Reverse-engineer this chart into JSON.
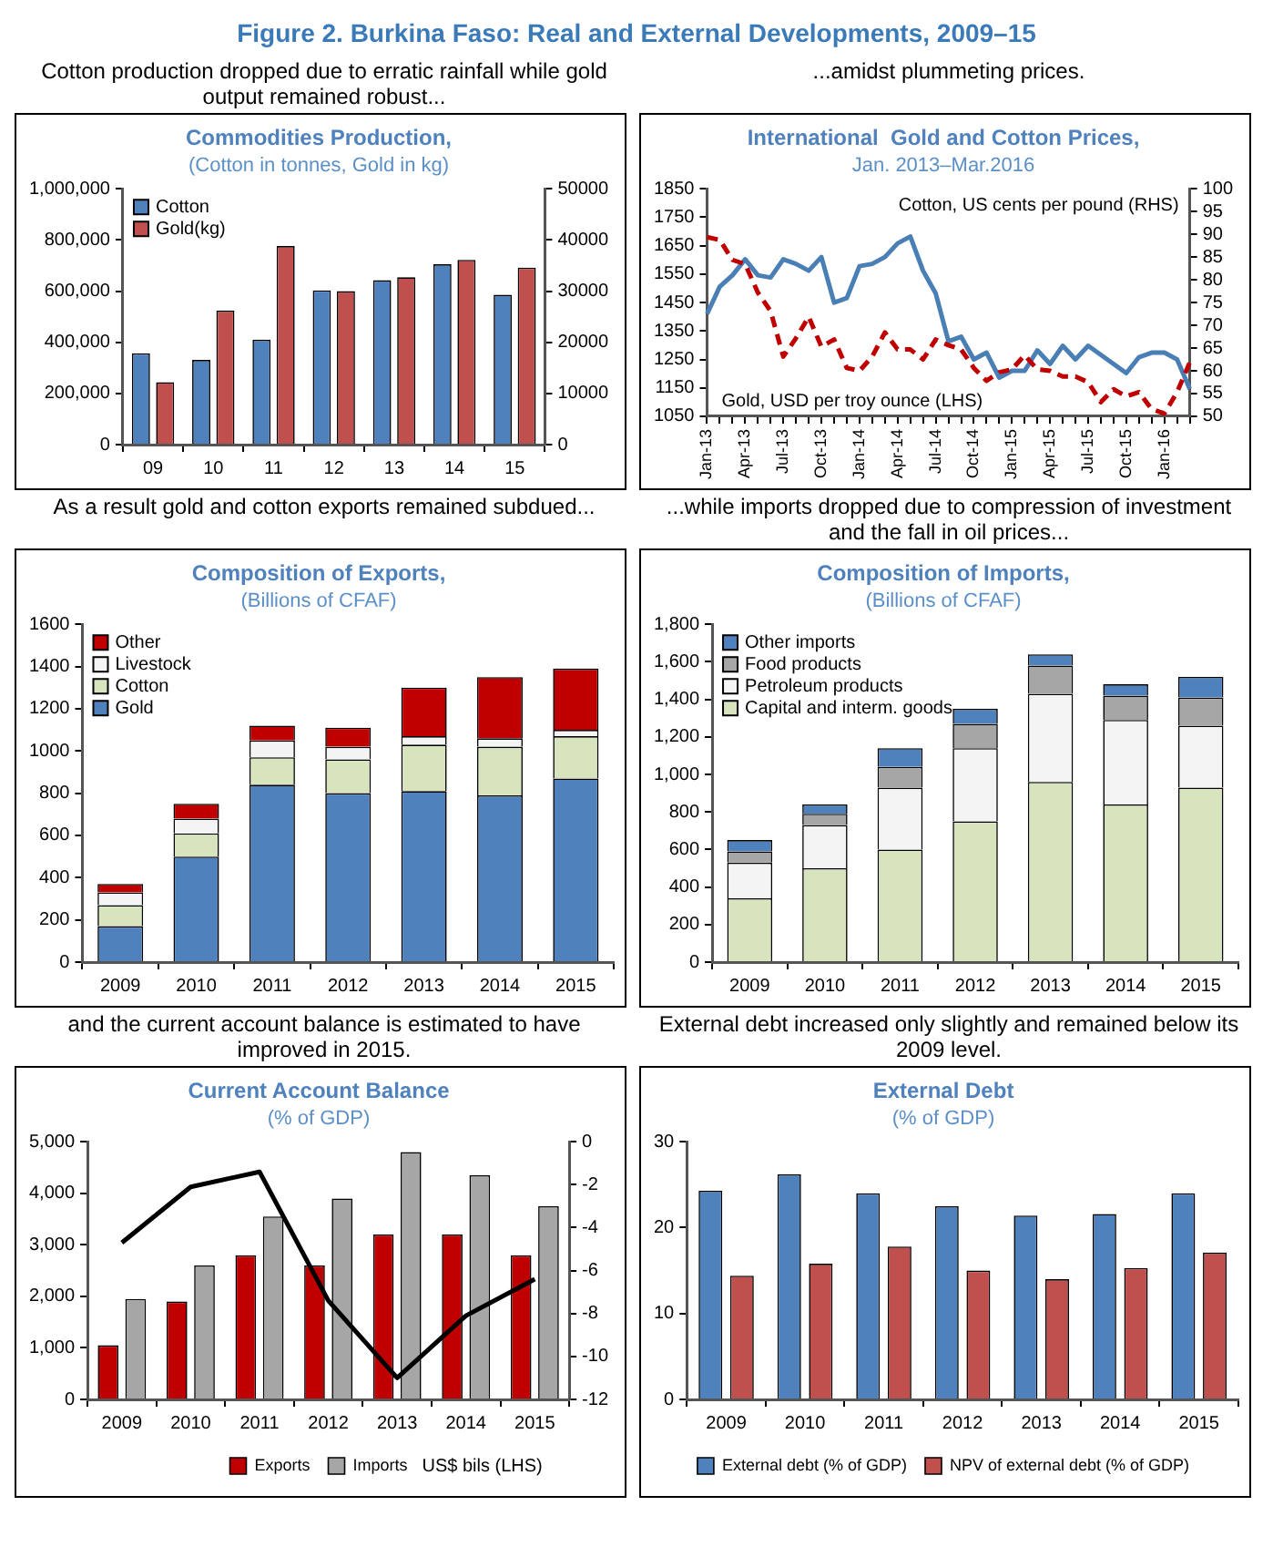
{
  "chart_data": [
    {
      "type": "bar",
      "title": "Commodities Production,",
      "subtitle": "(Cotton in tonnes, Gold in kg)",
      "annotations": [
        "Figure 2. Burkina Faso: Real and External Developments, 2009–15",
        "Cotton production dropped due to erratic rainfall while gold output remained robust..."
      ],
      "categories": [
        "09",
        "10",
        "11",
        "12",
        "13",
        "14",
        "15"
      ],
      "series": [
        {
          "name": "Cotton",
          "color": "#4f81bd",
          "values": [
            357000,
            331000,
            410000,
            603000,
            643000,
            705000,
            586000
          ]
        },
        {
          "name": "Gold(kg)",
          "color": "#c0504d",
          "axis": "y2",
          "values": [
            12200,
            26200,
            38800,
            30000,
            32700,
            36100,
            34600
          ]
        }
      ],
      "ylim": [
        0,
        1000000
      ],
      "yticks": [
        0,
        {
          "value": 200000,
          "label": "200,000"
        },
        {
          "value": 400000,
          "label": "400,000"
        },
        {
          "value": 600000,
          "label": "600,000"
        },
        {
          "value": 800000,
          "label": "800,000"
        },
        {
          "value": 1000000,
          "label": "1,000,000"
        }
      ],
      "y2lim": [
        0,
        50000
      ],
      "y2ticks": [
        0,
        10000,
        20000,
        30000,
        40000,
        50000
      ],
      "legend": "top left"
    },
    {
      "type": "line",
      "title": "International  Gold and Cotton Prices,",
      "subtitle": "Jan. 2013–Mar.2016",
      "annotations": [
        "...amidst plummeting  prices."
      ],
      "categories": [
        "Jan-13",
        null,
        null,
        "Apr-13",
        null,
        null,
        "Jul-13",
        null,
        null,
        "Oct-13",
        null,
        null,
        "Jan-14",
        null,
        null,
        "Apr-14",
        null,
        null,
        "Jul-14",
        null,
        null,
        "Oct-14",
        null,
        null,
        "Jan-15",
        null,
        null,
        "Apr-15",
        null,
        null,
        "Jul-15",
        null,
        null,
        "Oct-15",
        null,
        null,
        "Jan-16",
        null,
        null
      ],
      "series": [
        {
          "name": "Gold, USD per troy ounce (LHS)",
          "color": "#c00000",
          "line_style": "dashed",
          "values": [
            1680,
            1670,
            1600,
            1585,
            1485,
            1420,
            1260,
            1325,
            1400,
            1295,
            1320,
            1220,
            1210,
            1260,
            1345,
            1285,
            1285,
            1250,
            1320,
            1300,
            1285,
            1220,
            1175,
            1205,
            1215,
            1265,
            1215,
            1210,
            1190,
            1190,
            1170,
            1100,
            1145,
            1120,
            1135,
            1075,
            1060,
            1135,
            1240
          ]
        },
        {
          "name": "Cotton, US cents per pound (RHS)",
          "color": "#4a7fb5",
          "axis": "y2",
          "values": [
            72.5,
            78.5,
            81,
            84.5,
            81,
            80.5,
            84.5,
            83.5,
            82,
            85,
            75,
            76,
            83,
            83.5,
            85,
            88,
            89.5,
            82,
            77,
            66.5,
            67.5,
            62.5,
            64,
            58.5,
            60,
            60,
            64.5,
            61.5,
            65.5,
            62.5,
            65.5,
            63.5,
            61.5,
            59.5,
            63,
            64,
            64,
            62.5,
            56
          ]
        }
      ],
      "ylim": [
        1050,
        1850
      ],
      "yticks": [
        1050,
        1150,
        1250,
        1350,
        1450,
        1550,
        1650,
        1750,
        1850
      ],
      "y2lim": [
        50,
        100
      ],
      "y2ticks": [
        50,
        55,
        60,
        65,
        70,
        75,
        80,
        85,
        90,
        95,
        100
      ],
      "marker": "none"
    },
    {
      "type": "bar",
      "title": "Composition of Exports,",
      "subtitle": "(Billions of CFAF)",
      "stacked": true,
      "annotations": [
        "As a result gold and cotton exports remained subdued..."
      ],
      "categories": [
        "2009",
        "2010",
        "2011",
        "2012",
        "2013",
        "2014",
        "2015"
      ],
      "series": [
        {
          "name": "Gold",
          "color": "#4f81bd",
          "values": [
            170,
            500,
            840,
            800,
            810,
            790,
            870
          ]
        },
        {
          "name": "Cotton",
          "color": "#d7e4bd",
          "values": [
            100,
            110,
            130,
            160,
            220,
            230,
            200
          ]
        },
        {
          "name": "Livestock",
          "color": "#f4f4f4",
          "values": [
            60,
            70,
            80,
            60,
            40,
            40,
            30
          ]
        },
        {
          "name": "Other",
          "color": "#c00000",
          "values": [
            40,
            70,
            70,
            90,
            230,
            290,
            290
          ]
        }
      ],
      "ylim": [
        0,
        1600
      ],
      "yticks": [
        0,
        200,
        400,
        600,
        800,
        1000,
        1200,
        1400,
        1600
      ],
      "legend": "top left"
    },
    {
      "type": "bar",
      "title": "Composition of Imports,",
      "subtitle": "(Billions of CFAF)",
      "stacked": true,
      "annotations": [
        "...while imports dropped due to compression of investment and the fall in oil prices..."
      ],
      "categories": [
        "2009",
        "2010",
        "2011",
        "2012",
        "2013",
        "2014",
        "2015"
      ],
      "series": [
        {
          "name": "Capital and interm. goods",
          "color": "#d7e4bd",
          "values": [
            340,
            500,
            600,
            750,
            960,
            840,
            930
          ]
        },
        {
          "name": "Petroleum products",
          "color": "#f4f4f4",
          "values": [
            190,
            230,
            330,
            390,
            470,
            450,
            330
          ]
        },
        {
          "name": "Food products",
          "color": "#a6a6a6",
          "values": [
            60,
            60,
            110,
            130,
            150,
            130,
            150
          ]
        },
        {
          "name": "Other imports",
          "color": "#4f81bd",
          "values": [
            60,
            50,
            100,
            80,
            60,
            60,
            110
          ]
        }
      ],
      "ylim": [
        0,
        1800
      ],
      "yticks": [
        0,
        200,
        400,
        600,
        800,
        {
          "value": 1000,
          "label": "1,000"
        },
        {
          "value": 1200,
          "label": "1,200"
        },
        {
          "value": 1400,
          "label": "1,400"
        },
        {
          "value": 1600,
          "label": "1,600"
        },
        {
          "value": 1800,
          "label": "1,800"
        }
      ],
      "legend": "top left"
    },
    {
      "type": "bar",
      "title": "Current Account Balance",
      "subtitle": "(% of GDP)",
      "annotations": [
        "and the current account balance is estimated to have improved in 2015.",
        "US$ bils (LHS)"
      ],
      "categories": [
        "2009",
        "2010",
        "2011",
        "2012",
        "2013",
        "2014",
        "2015"
      ],
      "series": [
        {
          "name": "Exports",
          "color": "#c00000",
          "values": [
            1050,
            1900,
            2800,
            2600,
            3200,
            3200,
            2800
          ]
        },
        {
          "name": "Imports",
          "color": "#a6a6a6",
          "values": [
            1950,
            2600,
            3550,
            3900,
            4800,
            4350,
            3750
          ]
        },
        {
          "type": "line",
          "color": "#000000",
          "axis": "y2",
          "values": [
            -4.7,
            -2.1,
            -1.4,
            -7.4,
            -11,
            -8.1,
            -6.4
          ]
        }
      ],
      "ylim": [
        0,
        5000
      ],
      "yticks": [
        0,
        {
          "value": 1000,
          "label": "1,000"
        },
        {
          "value": 2000,
          "label": "2,000"
        },
        {
          "value": 3000,
          "label": "3,000"
        },
        {
          "value": 4000,
          "label": "4,000"
        },
        {
          "value": 5000,
          "label": "5,000"
        }
      ],
      "y2lim": [
        -12,
        0
      ],
      "y2ticks": [
        -12,
        -10,
        -8,
        -6,
        -4,
        -2,
        0
      ],
      "legend": "bottom",
      "marker": "none"
    },
    {
      "type": "bar",
      "title": "External Debt",
      "subtitle": "(% of GDP)",
      "annotations": [
        "External debt increased only slightly and remained below its 2009 level."
      ],
      "categories": [
        "2009",
        "2010",
        "2011",
        "2012",
        "2013",
        "2014",
        "2015"
      ],
      "series": [
        {
          "name": "External debt (% of GDP)",
          "color": "#4f81bd",
          "values": [
            24.3,
            26.2,
            24,
            22.5,
            21.4,
            21.6,
            24
          ]
        },
        {
          "name": "NPV of external debt (% of GDP)",
          "color": "#c0504d",
          "values": [
            14.4,
            15.8,
            17.8,
            15,
            14,
            15.3,
            17.1
          ]
        }
      ],
      "ylim": [
        0,
        30
      ],
      "yticks": [
        0,
        10,
        20,
        30
      ],
      "legend": "bottom"
    }
  ]
}
